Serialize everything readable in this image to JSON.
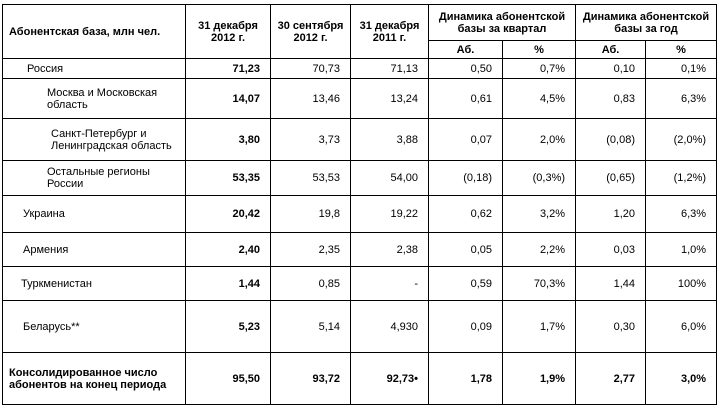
{
  "table": {
    "header": {
      "label": "Абонентская база, млн чел.",
      "dates": [
        "31 декабря 2012 г.",
        "30 сентября 2012 г.",
        "31 декабря 2011 г."
      ],
      "groups": [
        "Динамика абонентской базы за квартал",
        "Динамика абонентской базы за год"
      ],
      "sub": [
        "Аб.",
        "%",
        "Аб.",
        "%"
      ]
    },
    "rows": [
      {
        "label": "Россия",
        "cells": [
          "71,23",
          "70,73",
          "71,13",
          "0,50",
          "0,7%",
          "0,10",
          "0,1%"
        ]
      },
      {
        "label": "Москва и Московская  область",
        "cells": [
          "14,07",
          "13,46",
          "13,24",
          "0,61",
          "4,5%",
          "0,83",
          "6,3%"
        ]
      },
      {
        "label": "Санкт-Петербург и Ленинградская область",
        "cells": [
          "3,80",
          "3,73",
          "3,88",
          "0,07",
          "2,0%",
          "(0,08)",
          "(2,0%)"
        ]
      },
      {
        "label": "Остальные регионы России",
        "cells": [
          "53,35",
          "53,53",
          "54,00",
          "(0,18)",
          "(0,3%)",
          "(0,65)",
          "(1,2%)"
        ]
      },
      {
        "label": "Украина",
        "cells": [
          "20,42",
          "19,8",
          "19,22",
          "0,62",
          "3,2%",
          "1,20",
          "6,3%"
        ]
      },
      {
        "label": "Армения",
        "cells": [
          "2,40",
          "2,35",
          "2,38",
          "0,05",
          "2,2%",
          "0,03",
          "1,0%"
        ]
      },
      {
        "label": "Туркменистан",
        "cells": [
          "1,44",
          "0,85",
          "-",
          "0,59",
          "70,3%",
          "1,44",
          "100%"
        ]
      },
      {
        "label": "Беларусь**",
        "cells": [
          "5,23",
          "5,14",
          "4,930",
          "0,09",
          "1,7%",
          "0,30",
          "6,0%"
        ]
      },
      {
        "label": "Консолидированное число абонентов на конец периода",
        "cells": [
          "95,50",
          "93,72",
          "92,73•",
          "1,78",
          "1,9%",
          "2,77",
          "3,0%"
        ]
      }
    ]
  }
}
